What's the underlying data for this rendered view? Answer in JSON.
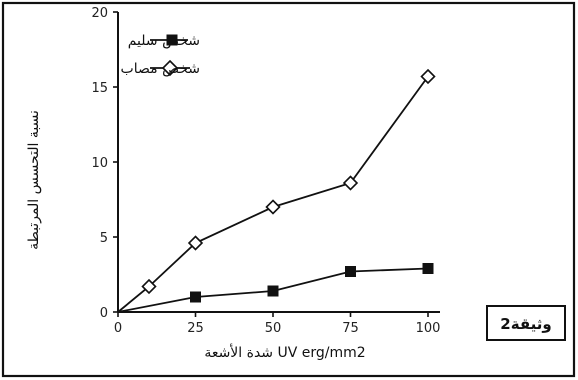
{
  "doc_tag": "وثيقة2",
  "chart_data": {
    "type": "line",
    "x_ticks": [
      "0",
      "25",
      "50",
      "75",
      "100"
    ],
    "y_ticks": [
      "0",
      "5",
      "10",
      "15",
      "20"
    ],
    "xlim": [
      0,
      100
    ],
    "ylim": [
      0,
      20
    ],
    "xlabel": "شدة الأشعة UV erg/mm2",
    "ylabel": "نسبة التحسس المرتبطة",
    "legend_position": "top-right",
    "grid": false,
    "series": [
      {
        "name": "شخص سليم",
        "marker": "filled-square",
        "x": [
          25,
          50,
          75,
          100
        ],
        "y": [
          1.0,
          1.4,
          2.7,
          2.9
        ]
      },
      {
        "name": "شخص مصاب",
        "marker": "open-diamond",
        "x": [
          10,
          25,
          50,
          75,
          100
        ],
        "y": [
          1.7,
          4.6,
          7.0,
          8.6,
          15.7
        ]
      }
    ],
    "line_color": "#111111"
  }
}
